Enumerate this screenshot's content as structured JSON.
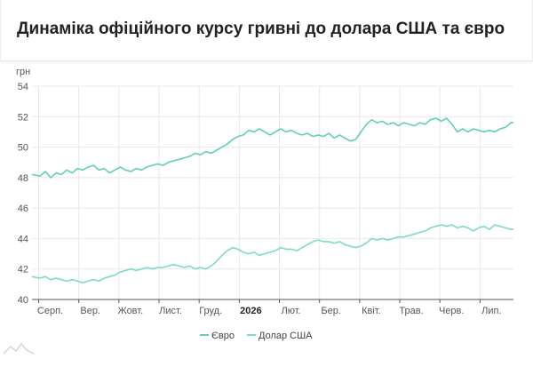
{
  "header": {
    "title": "Динаміка офіційного курсу гривні до долара США та євро"
  },
  "colors": {
    "euro": "#5fd3a8",
    "usd": "#7ed9c8",
    "grid": "#e8e8e8",
    "axis": "#555555",
    "logo": "#cccccc"
  },
  "logo_icon": "wave-logo-icon",
  "chart_data": {
    "type": "line",
    "ylabel": "грн",
    "ylim": [
      40,
      54
    ],
    "yticks": [
      40,
      42,
      44,
      46,
      48,
      50,
      52,
      54
    ],
    "xlim": [
      0,
      360
    ],
    "xticks": [
      {
        "x": 5,
        "label": "Серп.",
        "bold": false
      },
      {
        "x": 35,
        "label": "Вер.",
        "bold": false
      },
      {
        "x": 65,
        "label": "Жовт.",
        "bold": false
      },
      {
        "x": 95,
        "label": "Лист.",
        "bold": false
      },
      {
        "x": 125,
        "label": "Груд.",
        "bold": false
      },
      {
        "x": 155,
        "label": "2026",
        "bold": true
      },
      {
        "x": 185,
        "label": "Лют.",
        "bold": false
      },
      {
        "x": 215,
        "label": "Бер.",
        "bold": false
      },
      {
        "x": 245,
        "label": "Квіт.",
        "bold": false
      },
      {
        "x": 275,
        "label": "Трав.",
        "bold": false
      },
      {
        "x": 305,
        "label": "Черв.",
        "bold": false
      },
      {
        "x": 335,
        "label": "Лип.",
        "bold": false
      }
    ],
    "legend_position": "bottom-center",
    "series": [
      {
        "name": "Євро",
        "color": "#5fd3a8",
        "points": [
          [
            0,
            48.2
          ],
          [
            6,
            48.1
          ],
          [
            10,
            48.4
          ],
          [
            14,
            48.0
          ],
          [
            18,
            48.3
          ],
          [
            22,
            48.2
          ],
          [
            26,
            48.5
          ],
          [
            30,
            48.3
          ],
          [
            34,
            48.6
          ],
          [
            38,
            48.5
          ],
          [
            42,
            48.7
          ],
          [
            46,
            48.8
          ],
          [
            50,
            48.5
          ],
          [
            54,
            48.6
          ],
          [
            58,
            48.3
          ],
          [
            62,
            48.5
          ],
          [
            66,
            48.7
          ],
          [
            70,
            48.5
          ],
          [
            74,
            48.4
          ],
          [
            78,
            48.6
          ],
          [
            82,
            48.5
          ],
          [
            86,
            48.7
          ],
          [
            90,
            48.8
          ],
          [
            94,
            48.9
          ],
          [
            98,
            48.8
          ],
          [
            102,
            49.0
          ],
          [
            106,
            49.1
          ],
          [
            110,
            49.2
          ],
          [
            114,
            49.3
          ],
          [
            118,
            49.4
          ],
          [
            122,
            49.6
          ],
          [
            126,
            49.5
          ],
          [
            130,
            49.7
          ],
          [
            134,
            49.6
          ],
          [
            138,
            49.8
          ],
          [
            142,
            50.0
          ],
          [
            146,
            50.2
          ],
          [
            150,
            50.5
          ],
          [
            154,
            50.7
          ],
          [
            158,
            50.8
          ],
          [
            162,
            51.1
          ],
          [
            166,
            51.0
          ],
          [
            170,
            51.2
          ],
          [
            174,
            51.0
          ],
          [
            178,
            50.8
          ],
          [
            182,
            51.0
          ],
          [
            186,
            51.2
          ],
          [
            190,
            51.0
          ],
          [
            194,
            51.1
          ],
          [
            198,
            50.9
          ],
          [
            202,
            50.8
          ],
          [
            206,
            50.9
          ],
          [
            210,
            50.7
          ],
          [
            214,
            50.8
          ],
          [
            218,
            50.7
          ],
          [
            222,
            50.9
          ],
          [
            226,
            50.6
          ],
          [
            230,
            50.8
          ],
          [
            234,
            50.6
          ],
          [
            238,
            50.4
          ],
          [
            242,
            50.5
          ],
          [
            246,
            51.0
          ],
          [
            250,
            51.5
          ],
          [
            254,
            51.8
          ],
          [
            258,
            51.6
          ],
          [
            262,
            51.7
          ],
          [
            266,
            51.5
          ],
          [
            270,
            51.6
          ],
          [
            274,
            51.4
          ],
          [
            278,
            51.6
          ],
          [
            282,
            51.5
          ],
          [
            286,
            51.4
          ],
          [
            290,
            51.6
          ],
          [
            294,
            51.5
          ],
          [
            298,
            51.8
          ],
          [
            302,
            51.9
          ],
          [
            306,
            51.7
          ],
          [
            310,
            51.9
          ],
          [
            314,
            51.5
          ],
          [
            318,
            51.0
          ],
          [
            322,
            51.2
          ],
          [
            326,
            51.0
          ],
          [
            330,
            51.2
          ],
          [
            334,
            51.1
          ],
          [
            338,
            51.0
          ],
          [
            342,
            51.1
          ],
          [
            346,
            51.0
          ],
          [
            350,
            51.2
          ],
          [
            354,
            51.3
          ],
          [
            358,
            51.6
          ],
          [
            360,
            51.6
          ]
        ]
      },
      {
        "name": "Долар США",
        "color": "#7ed9c8",
        "points": [
          [
            0,
            41.5
          ],
          [
            6,
            41.4
          ],
          [
            10,
            41.5
          ],
          [
            14,
            41.3
          ],
          [
            18,
            41.4
          ],
          [
            22,
            41.3
          ],
          [
            26,
            41.2
          ],
          [
            30,
            41.3
          ],
          [
            34,
            41.2
          ],
          [
            38,
            41.1
          ],
          [
            42,
            41.2
          ],
          [
            46,
            41.3
          ],
          [
            50,
            41.2
          ],
          [
            54,
            41.4
          ],
          [
            58,
            41.5
          ],
          [
            62,
            41.6
          ],
          [
            66,
            41.8
          ],
          [
            70,
            41.9
          ],
          [
            74,
            42.0
          ],
          [
            78,
            41.9
          ],
          [
            82,
            42.0
          ],
          [
            86,
            42.1
          ],
          [
            90,
            42.0
          ],
          [
            94,
            42.1
          ],
          [
            98,
            42.1
          ],
          [
            102,
            42.2
          ],
          [
            106,
            42.3
          ],
          [
            110,
            42.2
          ],
          [
            114,
            42.1
          ],
          [
            118,
            42.2
          ],
          [
            122,
            42.0
          ],
          [
            126,
            42.1
          ],
          [
            130,
            42.0
          ],
          [
            134,
            42.2
          ],
          [
            138,
            42.5
          ],
          [
            142,
            42.9
          ],
          [
            146,
            43.2
          ],
          [
            150,
            43.4
          ],
          [
            154,
            43.3
          ],
          [
            158,
            43.1
          ],
          [
            162,
            43.0
          ],
          [
            166,
            43.1
          ],
          [
            170,
            42.9
          ],
          [
            174,
            43.0
          ],
          [
            178,
            43.1
          ],
          [
            182,
            43.2
          ],
          [
            186,
            43.4
          ],
          [
            190,
            43.3
          ],
          [
            194,
            43.3
          ],
          [
            198,
            43.2
          ],
          [
            202,
            43.4
          ],
          [
            206,
            43.6
          ],
          [
            210,
            43.8
          ],
          [
            214,
            43.9
          ],
          [
            218,
            43.8
          ],
          [
            222,
            43.8
          ],
          [
            226,
            43.7
          ],
          [
            230,
            43.8
          ],
          [
            234,
            43.6
          ],
          [
            238,
            43.5
          ],
          [
            242,
            43.4
          ],
          [
            246,
            43.5
          ],
          [
            250,
            43.7
          ],
          [
            254,
            44.0
          ],
          [
            258,
            43.9
          ],
          [
            262,
            44.0
          ],
          [
            266,
            43.9
          ],
          [
            270,
            44.0
          ],
          [
            274,
            44.1
          ],
          [
            278,
            44.1
          ],
          [
            282,
            44.2
          ],
          [
            286,
            44.3
          ],
          [
            290,
            44.4
          ],
          [
            294,
            44.5
          ],
          [
            298,
            44.7
          ],
          [
            302,
            44.8
          ],
          [
            306,
            44.9
          ],
          [
            310,
            44.8
          ],
          [
            314,
            44.9
          ],
          [
            318,
            44.7
          ],
          [
            322,
            44.8
          ],
          [
            326,
            44.7
          ],
          [
            330,
            44.5
          ],
          [
            334,
            44.7
          ],
          [
            338,
            44.8
          ],
          [
            342,
            44.6
          ],
          [
            346,
            44.9
          ],
          [
            350,
            44.8
          ],
          [
            354,
            44.7
          ],
          [
            358,
            44.6
          ],
          [
            360,
            44.6
          ]
        ]
      }
    ]
  }
}
